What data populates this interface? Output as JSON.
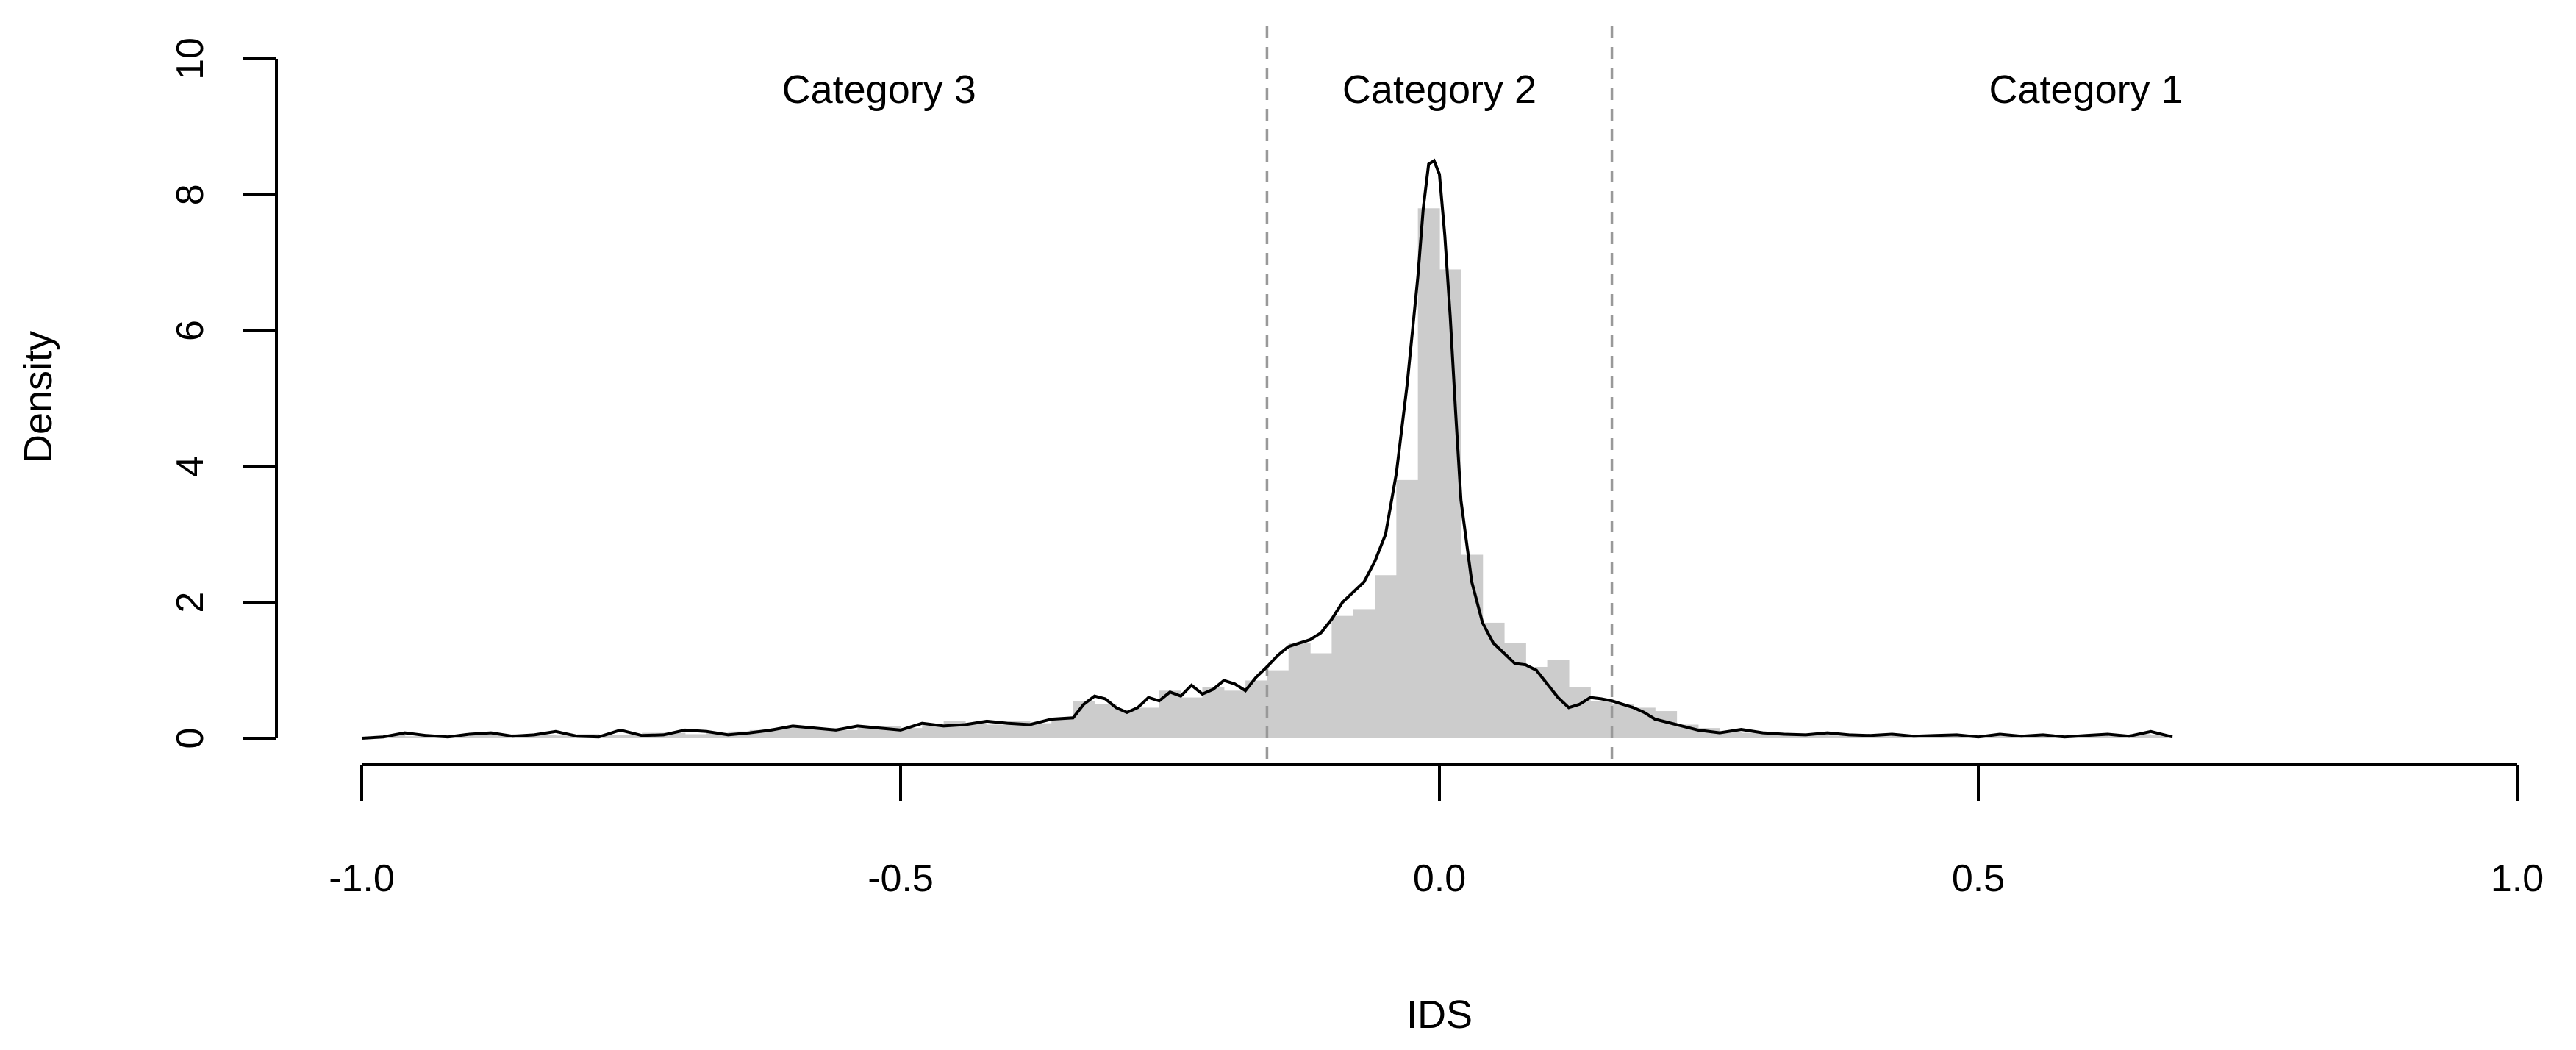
{
  "chart_data": {
    "type": "histogram",
    "xlabel": "IDS",
    "ylabel": "Density",
    "xlim": [
      -1.0,
      1.0
    ],
    "ylim": [
      0,
      10
    ],
    "x_ticks": [
      "-1.0",
      "-0.5",
      "0.0",
      "0.5",
      "1.0"
    ],
    "y_ticks": [
      "0",
      "2",
      "4",
      "6",
      "8",
      "10"
    ],
    "grid": false,
    "colors": {
      "bars": "#cccccc",
      "density_line": "#000000",
      "dividers": "#999999"
    },
    "histogram": {
      "bin_width": 0.02,
      "bin_left_edges": [
        -0.98,
        -0.96,
        -0.94,
        -0.92,
        -0.9,
        -0.88,
        -0.86,
        -0.84,
        -0.82,
        -0.8,
        -0.78,
        -0.76,
        -0.74,
        -0.72,
        -0.7,
        -0.68,
        -0.66,
        -0.64,
        -0.62,
        -0.6,
        -0.58,
        -0.56,
        -0.54,
        -0.52,
        -0.5,
        -0.48,
        -0.46,
        -0.44,
        -0.42,
        -0.4,
        -0.38,
        -0.36,
        -0.34,
        -0.32,
        -0.3,
        -0.28,
        -0.26,
        -0.24,
        -0.22,
        -0.2,
        -0.18,
        -0.16,
        -0.14,
        -0.12,
        -0.1,
        -0.08,
        -0.06,
        -0.04,
        -0.02,
        0.0,
        0.02,
        0.04,
        0.06,
        0.08,
        0.1,
        0.12,
        0.14,
        0.16,
        0.18,
        0.2,
        0.22,
        0.24,
        0.26,
        0.28,
        0.3,
        0.32,
        0.34,
        0.36,
        0.38,
        0.4,
        0.42,
        0.44,
        0.46,
        0.48,
        0.5,
        0.52,
        0.54,
        0.56,
        0.58,
        0.6,
        0.62,
        0.64,
        0.66
      ],
      "densities": [
        0.05,
        0.03,
        0.05,
        0.03,
        0.05,
        0.05,
        0.06,
        0.05,
        0.04,
        0.06,
        0.05,
        0.05,
        0.08,
        0.08,
        0.06,
        0.08,
        0.1,
        0.12,
        0.15,
        0.18,
        0.15,
        0.12,
        0.15,
        0.18,
        0.15,
        0.2,
        0.25,
        0.22,
        0.2,
        0.25,
        0.22,
        0.3,
        0.55,
        0.5,
        0.42,
        0.45,
        0.7,
        0.6,
        0.75,
        0.7,
        0.85,
        1.0,
        1.4,
        1.25,
        1.8,
        1.9,
        2.4,
        3.8,
        7.8,
        6.9,
        2.7,
        1.7,
        1.4,
        1.05,
        1.15,
        0.75,
        0.55,
        0.5,
        0.45,
        0.4,
        0.2,
        0.15,
        0.1,
        0.08,
        0.06,
        0.05,
        0.05,
        0.04,
        0.05,
        0.03,
        0.05,
        0.04,
        0.05,
        0.04,
        0.05,
        0.03,
        0.04,
        0.05,
        0.04,
        0.05,
        0.03,
        0.06,
        0.05
      ]
    },
    "density_curve": {
      "x": [
        -1.0,
        -0.98,
        -0.96,
        -0.94,
        -0.92,
        -0.9,
        -0.88,
        -0.86,
        -0.84,
        -0.82,
        -0.8,
        -0.78,
        -0.76,
        -0.74,
        -0.72,
        -0.7,
        -0.68,
        -0.66,
        -0.64,
        -0.62,
        -0.6,
        -0.58,
        -0.56,
        -0.54,
        -0.52,
        -0.5,
        -0.48,
        -0.46,
        -0.44,
        -0.42,
        -0.4,
        -0.38,
        -0.36,
        -0.34,
        -0.33,
        -0.32,
        -0.31,
        -0.3,
        -0.29,
        -0.28,
        -0.27,
        -0.26,
        -0.25,
        -0.24,
        -0.23,
        -0.22,
        -0.21,
        -0.2,
        -0.19,
        -0.18,
        -0.17,
        -0.16,
        -0.15,
        -0.14,
        -0.13,
        -0.12,
        -0.11,
        -0.1,
        -0.09,
        -0.08,
        -0.07,
        -0.06,
        -0.05,
        -0.04,
        -0.03,
        -0.02,
        -0.015,
        -0.01,
        -0.005,
        0.0,
        0.005,
        0.01,
        0.015,
        0.02,
        0.03,
        0.04,
        0.05,
        0.06,
        0.07,
        0.08,
        0.09,
        0.1,
        0.11,
        0.12,
        0.13,
        0.14,
        0.15,
        0.16,
        0.17,
        0.18,
        0.19,
        0.2,
        0.22,
        0.24,
        0.26,
        0.28,
        0.3,
        0.32,
        0.34,
        0.36,
        0.38,
        0.4,
        0.42,
        0.44,
        0.46,
        0.48,
        0.5,
        0.52,
        0.54,
        0.56,
        0.58,
        0.6,
        0.62,
        0.64,
        0.66,
        0.68
      ],
      "y": [
        0.0,
        0.02,
        0.08,
        0.04,
        0.02,
        0.06,
        0.08,
        0.03,
        0.05,
        0.1,
        0.03,
        0.02,
        0.12,
        0.04,
        0.05,
        0.12,
        0.1,
        0.05,
        0.08,
        0.12,
        0.18,
        0.15,
        0.12,
        0.18,
        0.15,
        0.12,
        0.22,
        0.18,
        0.2,
        0.25,
        0.22,
        0.2,
        0.28,
        0.3,
        0.5,
        0.62,
        0.58,
        0.45,
        0.38,
        0.45,
        0.6,
        0.55,
        0.68,
        0.62,
        0.78,
        0.65,
        0.72,
        0.85,
        0.8,
        0.7,
        0.9,
        1.05,
        1.22,
        1.35,
        1.4,
        1.45,
        1.55,
        1.75,
        2.0,
        2.15,
        2.3,
        2.6,
        3.0,
        3.9,
        5.2,
        6.8,
        7.8,
        8.45,
        8.5,
        8.3,
        7.4,
        6.2,
        4.8,
        3.5,
        2.3,
        1.7,
        1.4,
        1.25,
        1.1,
        1.08,
        1.0,
        0.8,
        0.6,
        0.45,
        0.5,
        0.6,
        0.58,
        0.55,
        0.5,
        0.45,
        0.38,
        0.28,
        0.2,
        0.12,
        0.08,
        0.13,
        0.08,
        0.06,
        0.05,
        0.08,
        0.05,
        0.04,
        0.06,
        0.03,
        0.04,
        0.05,
        0.02,
        0.06,
        0.03,
        0.05,
        0.02,
        0.04,
        0.06,
        0.03,
        0.1,
        0.02
      ]
    },
    "dividers": [
      -0.16,
      0.16
    ],
    "regions": [
      {
        "label": "Category 3",
        "x_center": -0.52
      },
      {
        "label": "Category 2",
        "x_center": 0.0
      },
      {
        "label": "Category 1",
        "x_center": 0.6
      }
    ]
  }
}
